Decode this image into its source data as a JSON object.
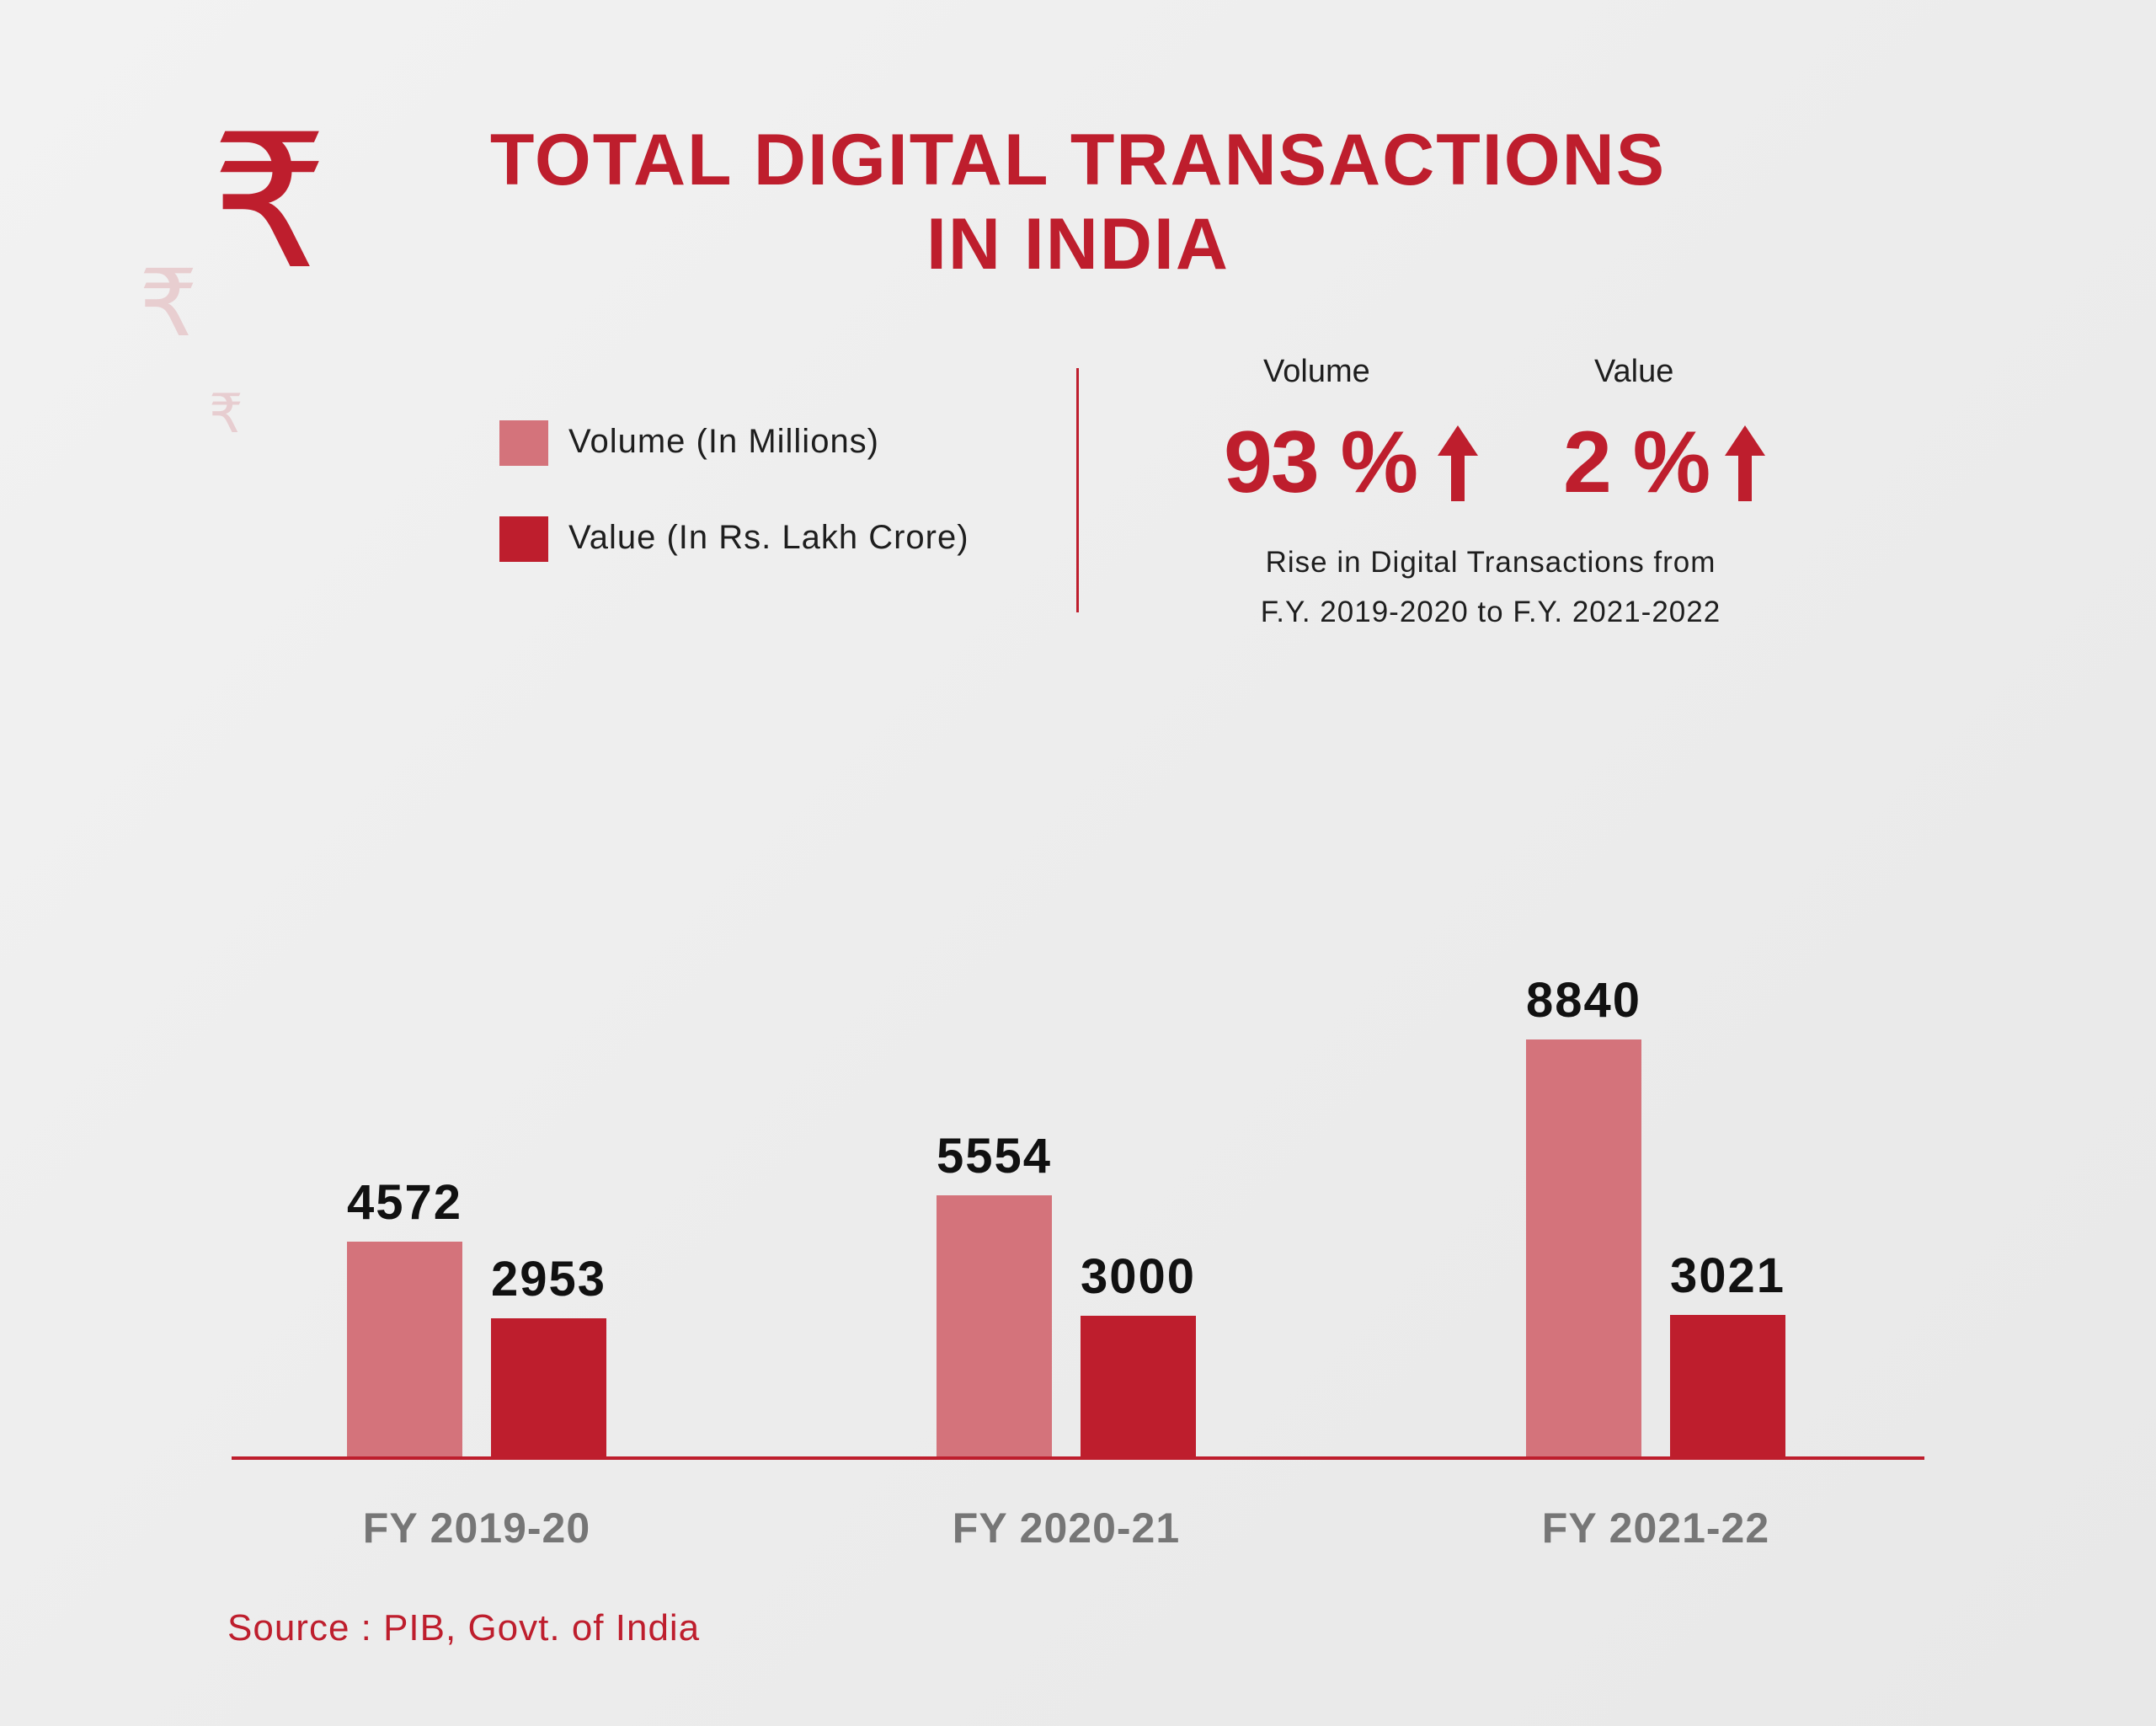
{
  "title_lines": [
    "TOTAL DIGITAL TRANSACTIONS",
    "IN INDIA"
  ],
  "icons": [
    "rupee-icon",
    "rupee-icon",
    "rupee-icon",
    "arrow-up-icon"
  ],
  "colors": {
    "accent": "#be1e2d",
    "volume": "#d4737b",
    "value": "#be1e2d"
  },
  "legend": [
    {
      "label": "Volume (In Millions)",
      "color": "#d4737b"
    },
    {
      "label": "Value (In Rs. Lakh Crore)",
      "color": "#be1e2d"
    }
  ],
  "stats": {
    "volume": {
      "heading": "Volume",
      "percent": "93 %"
    },
    "value": {
      "heading": "Value",
      "percent": "2 %"
    },
    "caption_lines": [
      "Rise in Digital Transactions from",
      "F.Y. 2019-2020 to F.Y. 2021-2022"
    ]
  },
  "source": "Source : PIB, Govt. of India",
  "chart_data": {
    "type": "bar",
    "categories": [
      "FY 2019-20",
      "FY 2020-21",
      "FY 2021-22"
    ],
    "series": [
      {
        "name": "Volume (In Millions)",
        "values": [
          4572,
          5554,
          8840
        ],
        "color": "#d4737b"
      },
      {
        "name": "Value (In Rs. Lakh Crore)",
        "values": [
          2953,
          3000,
          3021
        ],
        "color": "#be1e2d"
      }
    ],
    "data_labels": [
      [
        "4572",
        "5554",
        "8840"
      ],
      [
        "2953",
        "3000",
        "3021"
      ]
    ],
    "grid": false,
    "legend_position": "top-left"
  }
}
